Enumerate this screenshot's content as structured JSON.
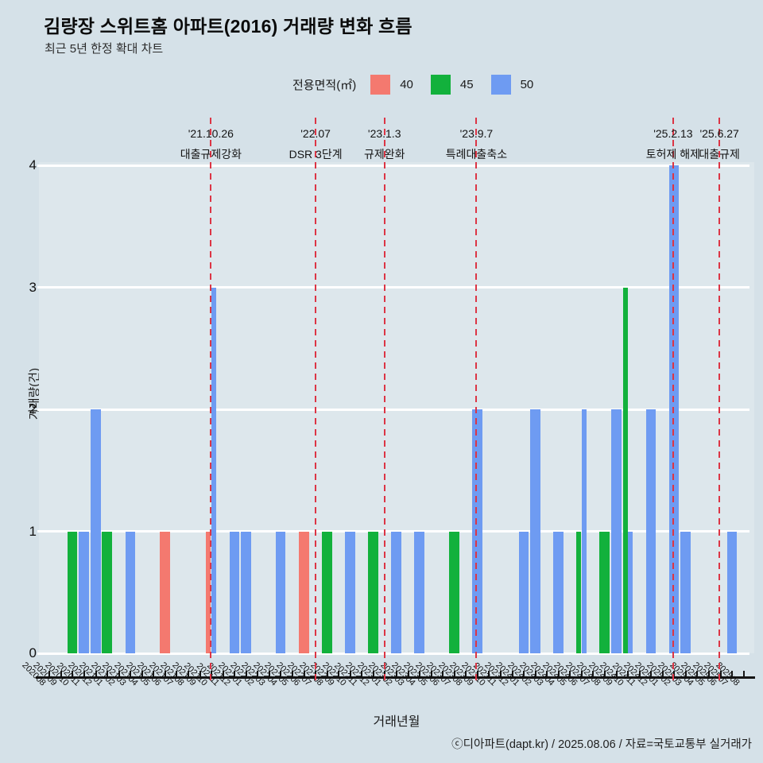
{
  "header": {
    "title": "김량장 스위트홈 아파트(2016) 거래량 변화 흐름",
    "subtitle": "최근 5년 한정 확대 차트"
  },
  "legend": {
    "title": "전용면적(㎡)"
  },
  "chart_data": {
    "type": "bar",
    "title": "김량장 스위트홈 아파트(2016) 거래량 변화 흐름",
    "subtitle": "최근 5년 한정 확대 차트",
    "xlabel": "거래년월",
    "ylabel": "거래량(건)",
    "ylim": [
      0,
      4
    ],
    "yticks": [
      0,
      1,
      2,
      3,
      4
    ],
    "grid": true,
    "legend_position": "top-center",
    "categories": [
      "202008",
      "202009",
      "202010",
      "202011",
      "202012",
      "202101",
      "202102",
      "202103",
      "202104",
      "202105",
      "202106",
      "202107",
      "202108",
      "202109",
      "202110",
      "202111",
      "202112",
      "202201",
      "202202",
      "202203",
      "202204",
      "202205",
      "202206",
      "202207",
      "202208",
      "202209",
      "202210",
      "202211",
      "202212",
      "202301",
      "202302",
      "202303",
      "202304",
      "202305",
      "202306",
      "202307",
      "202308",
      "202309",
      "202310",
      "202311",
      "202312",
      "202401",
      "202402",
      "202403",
      "202404",
      "202405",
      "202406",
      "202407",
      "202408",
      "202409",
      "202410",
      "202411",
      "202412",
      "202501",
      "202502",
      "202503",
      "202504",
      "202505",
      "202506",
      "202507",
      "202508"
    ],
    "series": [
      {
        "name": "40",
        "color": "#f4796f",
        "points": {
          "202106": 1,
          "202110": 1,
          "202206": 1
        }
      },
      {
        "name": "45",
        "color": "#12b13c",
        "points": {
          "202010": 1,
          "202101": 1,
          "202208": 1,
          "202212": 1,
          "202307": 1,
          "202406": 1,
          "202408": 1,
          "202410": 3
        }
      },
      {
        "name": "50",
        "color": "#6e9bf2",
        "points": {
          "202011": 1,
          "202012": 2,
          "202103": 1,
          "202110": 3,
          "202112": 1,
          "202201": 1,
          "202204": 1,
          "202210": 1,
          "202302": 1,
          "202304": 1,
          "202309": 2,
          "202401": 1,
          "202402": 2,
          "202404": 1,
          "202406": 2,
          "202409": 2,
          "202410": 1,
          "202412": 2,
          "202502": 4,
          "202503": 1,
          "202507": 1
        }
      }
    ],
    "annotations": [
      {
        "pos": 14.45,
        "date": "'21.10.26",
        "label": "대출규제강화"
      },
      {
        "pos": 23.5,
        "date": "'22.07",
        "label": "DSR 3단계"
      },
      {
        "pos": 29.45,
        "date": "'23.1.3",
        "label": "규제완화"
      },
      {
        "pos": 37.4,
        "date": "'23.9.7",
        "label": "특례대출축소"
      },
      {
        "pos": 54.4,
        "date": "'25.2.13",
        "label": "토허제 해제"
      },
      {
        "pos": 58.4,
        "date": "'25.6.27",
        "label": "대출규제"
      }
    ],
    "colors": {
      "annotation_line": "#dc3545",
      "grid": "#ffffff",
      "axis": "#141414",
      "background": "#d5e1e8"
    }
  },
  "footer": {
    "credit": "ⓒ디아파트(dapt.kr) / 2025.08.06 / 자료=국토교통부 실거래가"
  }
}
